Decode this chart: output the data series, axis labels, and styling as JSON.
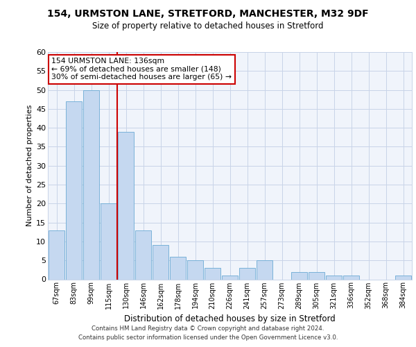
{
  "title1": "154, URMSTON LANE, STRETFORD, MANCHESTER, M32 9DF",
  "title2": "Size of property relative to detached houses in Stretford",
  "xlabel": "Distribution of detached houses by size in Stretford",
  "ylabel": "Number of detached properties",
  "categories": [
    "67sqm",
    "83sqm",
    "99sqm",
    "115sqm",
    "130sqm",
    "146sqm",
    "162sqm",
    "178sqm",
    "194sqm",
    "210sqm",
    "226sqm",
    "241sqm",
    "257sqm",
    "273sqm",
    "289sqm",
    "305sqm",
    "321sqm",
    "336sqm",
    "352sqm",
    "368sqm",
    "384sqm"
  ],
  "values": [
    13,
    47,
    50,
    20,
    39,
    13,
    9,
    6,
    5,
    3,
    1,
    3,
    5,
    0,
    2,
    2,
    1,
    1,
    0,
    0,
    1
  ],
  "bar_color": "#c5d8f0",
  "bar_edge_color": "#6aaad4",
  "vline_color": "#cc0000",
  "annotation_text1": "154 URMSTON LANE: 136sqm",
  "annotation_text2": "← 69% of detached houses are smaller (148)",
  "annotation_text3": "30% of semi-detached houses are larger (65) →",
  "annotation_box_color": "#ffffff",
  "annotation_border_color": "#cc0000",
  "footer1": "Contains HM Land Registry data © Crown copyright and database right 2024.",
  "footer2": "Contains public sector information licensed under the Open Government Licence v3.0.",
  "ylim": [
    0,
    60
  ],
  "yticks": [
    0,
    5,
    10,
    15,
    20,
    25,
    30,
    35,
    40,
    45,
    50,
    55,
    60
  ],
  "bg_color": "#ffffff",
  "plot_bg_color": "#f0f4fb",
  "grid_color": "#c8d4e8"
}
